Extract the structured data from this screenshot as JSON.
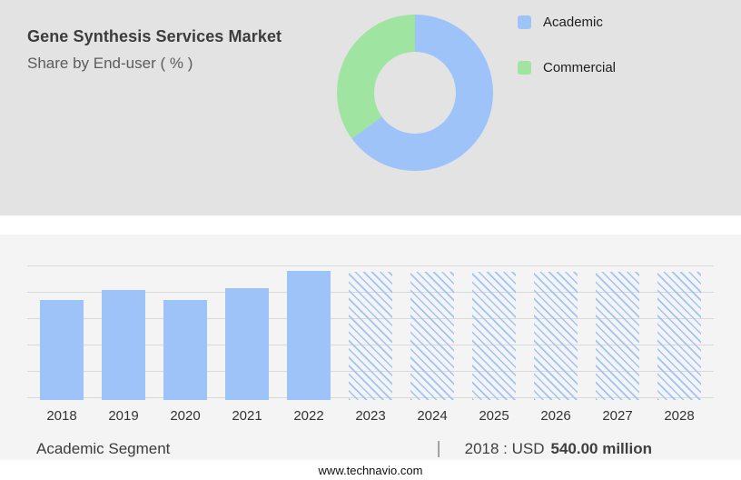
{
  "header": {
    "title": "Gene Synthesis Services Market",
    "subtitle": "Share by End-user ( % )"
  },
  "colors": {
    "academic_blue": "#9ec3f9",
    "commercial_green": "#9fe4a0",
    "top_panel_bg": "#e3e3e3",
    "bottom_panel_bg": "#f4f4f4",
    "gridline": "#d9d9d9"
  },
  "legend": {
    "items": [
      {
        "label": "Academic",
        "color": "#9ec3f9"
      },
      {
        "label": "Commercial",
        "color": "#9fe4a0"
      }
    ]
  },
  "chart_data": [
    {
      "type": "pie",
      "title": "Share by End-user ( % )",
      "labels": [
        "Academic",
        "Commercial"
      ],
      "values": [
        65,
        35
      ],
      "colors": [
        "#9ec3f9",
        "#9fe4a0"
      ],
      "hole": 0.52,
      "legend_position": "top-right"
    },
    {
      "type": "bar",
      "categories": [
        "2018",
        "2019",
        "2020",
        "2021",
        "2022",
        "2023",
        "2024",
        "2025",
        "2026",
        "2027",
        "2028"
      ],
      "values": [
        74,
        82,
        74,
        83,
        96,
        95,
        95,
        95,
        95,
        95,
        95
      ],
      "bar_color": "#9ec3f9",
      "forecast_start_index": 5,
      "forecast_style": "hatched",
      "grid": true,
      "xlabel": "",
      "ylabel": "",
      "ylim": [
        0,
        100
      ]
    }
  ],
  "caption": {
    "segment_label": "Academic Segment",
    "separator": "|",
    "value_prefix": "2018 : USD",
    "value_bold": "540.00 million"
  },
  "footer": {
    "website": "www.technavio.com"
  }
}
